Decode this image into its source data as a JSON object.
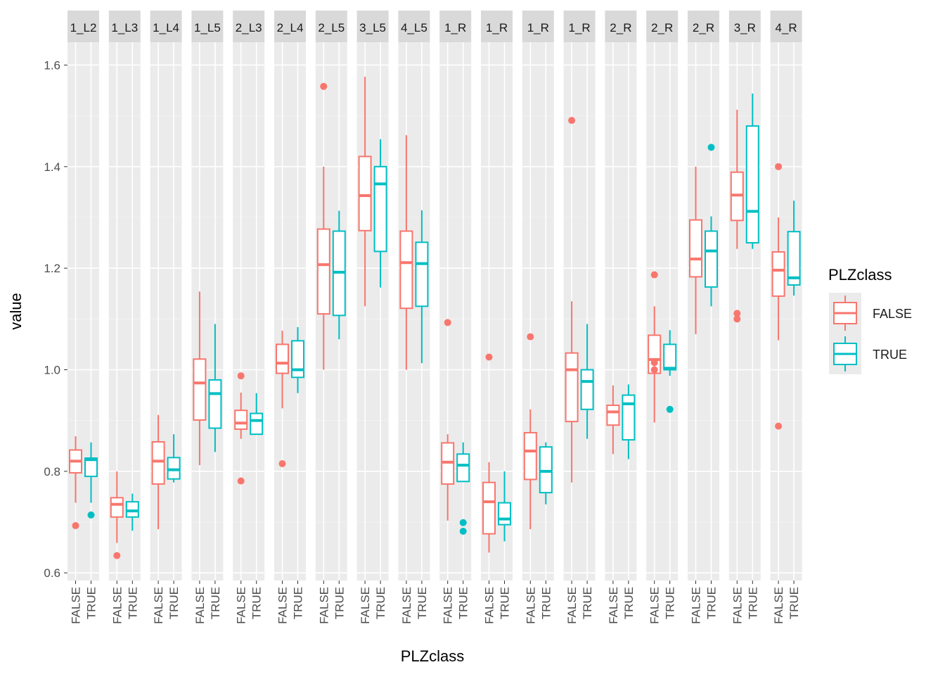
{
  "chart_data": {
    "type": "boxplot",
    "xlabel": "PLZclass",
    "ylabel": "value",
    "ylim": [
      0.585,
      1.645
    ],
    "y_ticks": [
      "0.6",
      "0.8",
      "1.0",
      "1.2",
      "1.4",
      "1.6"
    ],
    "y_tick_values": [
      0.6,
      0.8,
      1.0,
      1.2,
      1.4,
      1.6
    ],
    "categories": [
      "FALSE",
      "TRUE"
    ],
    "grid": true,
    "legend": {
      "title": "PLZclass",
      "placement": "right",
      "entries": [
        {
          "label": "FALSE",
          "color": "#F8766D"
        },
        {
          "label": "TRUE",
          "color": "#00BFC4"
        }
      ]
    },
    "facets": [
      {
        "label": "1_L2",
        "boxes": [
          {
            "min": 0.738,
            "q1": 0.797,
            "median": 0.82,
            "q3": 0.842,
            "max": 0.869,
            "outliers": [
              0.693
            ]
          },
          {
            "min": 0.738,
            "q1": 0.79,
            "median": 0.823,
            "q3": 0.826,
            "max": 0.857,
            "outliers": [
              0.714
            ]
          }
        ]
      },
      {
        "label": "1_L3",
        "boxes": [
          {
            "min": 0.659,
            "q1": 0.71,
            "median": 0.735,
            "q3": 0.748,
            "max": 0.8,
            "outliers": [
              0.634
            ]
          },
          {
            "min": 0.683,
            "q1": 0.71,
            "median": 0.722,
            "q3": 0.74,
            "max": 0.756,
            "outliers": []
          }
        ]
      },
      {
        "label": "1_L4",
        "boxes": [
          {
            "min": 0.686,
            "q1": 0.775,
            "median": 0.82,
            "q3": 0.858,
            "max": 0.911,
            "outliers": []
          },
          {
            "min": 0.778,
            "q1": 0.785,
            "median": 0.803,
            "q3": 0.827,
            "max": 0.873,
            "outliers": []
          }
        ]
      },
      {
        "label": "1_L5",
        "boxes": [
          {
            "min": 0.812,
            "q1": 0.901,
            "median": 0.974,
            "q3": 1.021,
            "max": 1.154,
            "outliers": []
          },
          {
            "min": 0.838,
            "q1": 0.885,
            "median": 0.953,
            "q3": 0.98,
            "max": 1.09,
            "outliers": []
          }
        ]
      },
      {
        "label": "2_L3",
        "boxes": [
          {
            "min": 0.864,
            "q1": 0.883,
            "median": 0.895,
            "q3": 0.92,
            "max": 0.955,
            "outliers": [
              0.988,
              0.781
            ]
          },
          {
            "min": 0.873,
            "q1": 0.873,
            "median": 0.9,
            "q3": 0.914,
            "max": 0.954,
            "outliers": []
          }
        ]
      },
      {
        "label": "2_L4",
        "boxes": [
          {
            "min": 0.924,
            "q1": 0.993,
            "median": 1.013,
            "q3": 1.05,
            "max": 1.077,
            "outliers": [
              0.815
            ]
          },
          {
            "min": 0.954,
            "q1": 0.985,
            "median": 1.0,
            "q3": 1.057,
            "max": 1.084,
            "outliers": []
          }
        ]
      },
      {
        "label": "2_L5",
        "boxes": [
          {
            "min": 1.0,
            "q1": 1.11,
            "median": 1.207,
            "q3": 1.277,
            "max": 1.4,
            "outliers": [
              1.558
            ]
          },
          {
            "min": 1.06,
            "q1": 1.107,
            "median": 1.192,
            "q3": 1.273,
            "max": 1.313,
            "outliers": []
          }
        ]
      },
      {
        "label": "3_L5",
        "boxes": [
          {
            "min": 1.125,
            "q1": 1.274,
            "median": 1.343,
            "q3": 1.42,
            "max": 1.577,
            "outliers": []
          },
          {
            "min": 1.162,
            "q1": 1.233,
            "median": 1.366,
            "q3": 1.4,
            "max": 1.454,
            "outliers": []
          }
        ]
      },
      {
        "label": "4_L5",
        "boxes": [
          {
            "min": 1.0,
            "q1": 1.121,
            "median": 1.211,
            "q3": 1.273,
            "max": 1.462,
            "outliers": []
          },
          {
            "min": 1.013,
            "q1": 1.125,
            "median": 1.209,
            "q3": 1.251,
            "max": 1.314,
            "outliers": []
          }
        ]
      },
      {
        "label": "1_R",
        "boxes": [
          {
            "min": 0.703,
            "q1": 0.775,
            "median": 0.818,
            "q3": 0.856,
            "max": 0.873,
            "outliers": [
              1.093
            ]
          },
          {
            "min": 0.78,
            "q1": 0.78,
            "median": 0.812,
            "q3": 0.834,
            "max": 0.857,
            "outliers": [
              0.699,
              0.682
            ]
          }
        ]
      },
      {
        "label": "1_R",
        "boxes": [
          {
            "min": 0.64,
            "q1": 0.677,
            "median": 0.74,
            "q3": 0.778,
            "max": 0.818,
            "outliers": [
              1.025
            ]
          },
          {
            "min": 0.662,
            "q1": 0.695,
            "median": 0.706,
            "q3": 0.738,
            "max": 0.8,
            "outliers": []
          }
        ]
      },
      {
        "label": "1_R",
        "boxes": [
          {
            "min": 0.686,
            "q1": 0.784,
            "median": 0.84,
            "q3": 0.876,
            "max": 0.922,
            "outliers": [
              1.065
            ]
          },
          {
            "min": 0.735,
            "q1": 0.758,
            "median": 0.8,
            "q3": 0.848,
            "max": 0.857,
            "outliers": []
          }
        ]
      },
      {
        "label": "1_R",
        "boxes": [
          {
            "min": 0.778,
            "q1": 0.898,
            "median": 1.0,
            "q3": 1.033,
            "max": 1.135,
            "outliers": [
              1.491
            ]
          },
          {
            "min": 0.864,
            "q1": 0.922,
            "median": 0.977,
            "q3": 1.0,
            "max": 1.09,
            "outliers": []
          }
        ]
      },
      {
        "label": "2_R",
        "boxes": [
          {
            "min": 0.834,
            "q1": 0.891,
            "median": 0.917,
            "q3": 0.93,
            "max": 0.969,
            "outliers": []
          },
          {
            "min": 0.824,
            "q1": 0.862,
            "median": 0.933,
            "q3": 0.95,
            "max": 0.971,
            "outliers": []
          }
        ]
      },
      {
        "label": "2_R",
        "boxes": [
          {
            "min": 0.896,
            "q1": 0.993,
            "median": 1.02,
            "q3": 1.068,
            "max": 1.125,
            "outliers": [
              1.187,
              1.014,
              1.0
            ]
          },
          {
            "min": 0.988,
            "q1": 1.0,
            "median": 1.003,
            "q3": 1.05,
            "max": 1.078,
            "outliers": [
              0.922
            ]
          }
        ]
      },
      {
        "label": "2_R",
        "boxes": [
          {
            "min": 1.07,
            "q1": 1.183,
            "median": 1.218,
            "q3": 1.295,
            "max": 1.4,
            "outliers": []
          },
          {
            "min": 1.125,
            "q1": 1.163,
            "median": 1.234,
            "q3": 1.273,
            "max": 1.302,
            "outliers": [
              1.438
            ]
          }
        ]
      },
      {
        "label": "3_R",
        "boxes": [
          {
            "min": 1.238,
            "q1": 1.294,
            "median": 1.344,
            "q3": 1.389,
            "max": 1.512,
            "outliers": [
              1.111,
              1.1
            ]
          },
          {
            "min": 1.238,
            "q1": 1.25,
            "median": 1.312,
            "q3": 1.48,
            "max": 1.544,
            "outliers": []
          }
        ]
      },
      {
        "label": "4_R",
        "boxes": [
          {
            "min": 1.058,
            "q1": 1.145,
            "median": 1.196,
            "q3": 1.232,
            "max": 1.3,
            "outliers": [
              1.4,
              0.889
            ]
          },
          {
            "min": 1.146,
            "q1": 1.167,
            "median": 1.181,
            "q3": 1.272,
            "max": 1.333,
            "outliers": []
          }
        ]
      }
    ]
  }
}
